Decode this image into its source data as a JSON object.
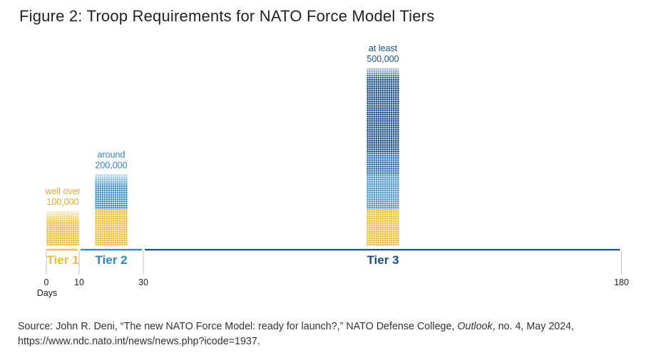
{
  "title": "Figure 2: Troop Requirements for NATO Force Model Tiers",
  "chart_data": {
    "type": "bar",
    "title": "Figure 2: Troop Requirements for NATO Force Model Tiers",
    "xlabel": "Days",
    "ylabel": "",
    "x_ticks": [
      0,
      10,
      30,
      180
    ],
    "xlim": [
      0,
      180
    ],
    "ylim": [
      0,
      500000
    ],
    "categories": [
      "Tier 1",
      "Tier 2",
      "Tier 3"
    ],
    "tiers": [
      {
        "name": "Tier 1",
        "start_day": 0,
        "end_day": 10,
        "troops": 100000,
        "label_line1": "well over",
        "label_line2": "100,000",
        "color": "#F0B93C"
      },
      {
        "name": "Tier 2",
        "start_day": 10,
        "end_day": 30,
        "troops": 200000,
        "label_line1": "around",
        "label_line2": "200,000",
        "color": "#2E86C1"
      },
      {
        "name": "Tier 3",
        "start_day": 30,
        "end_day": 180,
        "troops": 500000,
        "label_line1": "at least",
        "label_line2": "500,000",
        "color": "#1B4F8A"
      }
    ],
    "series": [
      {
        "name": "Tier 1 forces",
        "values": [
          100000,
          100000,
          100000
        ],
        "color": "#F0B93C"
      },
      {
        "name": "Tier 2 forces",
        "values": [
          0,
          100000,
          100000
        ],
        "color": "#3A8FCB"
      },
      {
        "name": "Tier 3 forces",
        "values": [
          0,
          0,
          300000
        ],
        "color": "#1B4F8A"
      }
    ]
  },
  "source": {
    "prefix": "Source: John R. Deni, “The new NATO Force Model: ready for launch?,” NATO Defense College, ",
    "publication": "Outlook",
    "suffix": ", no. 4, May 2024, https://www.ndc.nato.int/news/news.php?icode=1937."
  }
}
